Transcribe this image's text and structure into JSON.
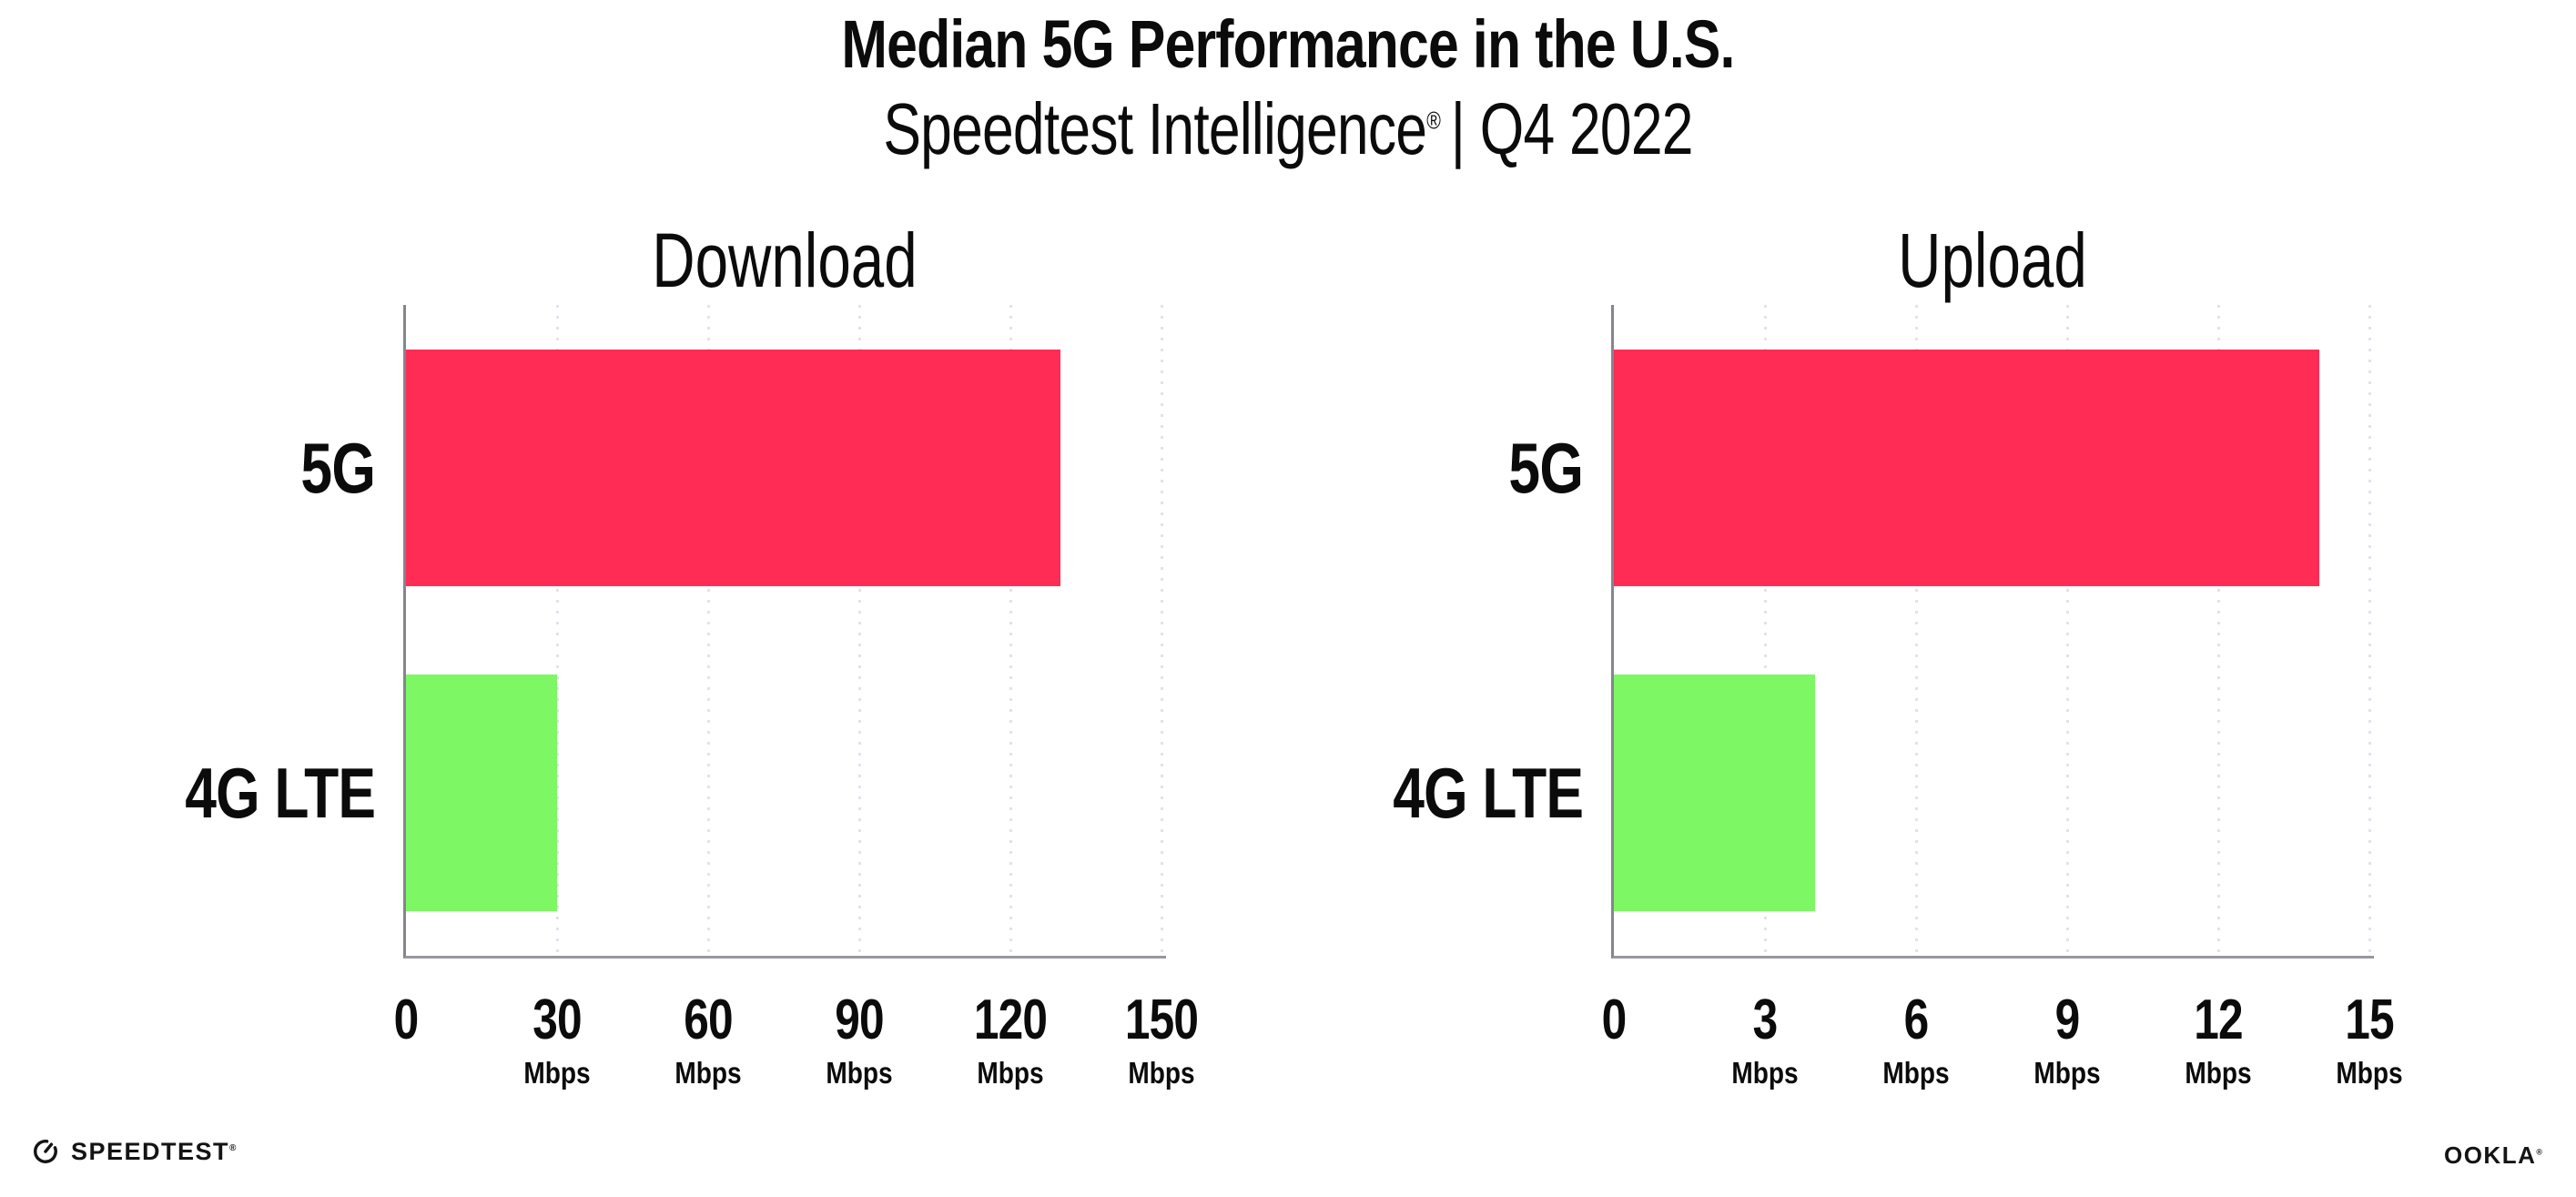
{
  "header": {
    "title": "Median 5G Performance in the U.S.",
    "subtitle_brand": "Speedtest Intelligence",
    "subtitle_reg": "®",
    "subtitle_rest": "| Q4 2022"
  },
  "footer": {
    "speedtest_label": "SPEEDTEST",
    "speedtest_reg": "®",
    "ookla_label": "OOKLA",
    "ookla_reg": "®"
  },
  "colors": {
    "bar_5g": "#ff2d55",
    "bar_4g_lte": "#7df763",
    "axis": "#85858d",
    "gridline": "#e2e2ec",
    "text": "#0b0b0b"
  },
  "chart_data": [
    {
      "type": "bar",
      "orientation": "horizontal",
      "title": "Download",
      "categories": [
        "5G",
        "4G LTE"
      ],
      "values": [
        130,
        30
      ],
      "unit": "Mbps",
      "xlim": [
        0,
        150
      ],
      "xticks": [
        0,
        30,
        60,
        90,
        120,
        150
      ],
      "grid": "dotted-vertical",
      "legend": "none",
      "bar_colors": [
        "#ff2d55",
        "#7df763"
      ]
    },
    {
      "type": "bar",
      "orientation": "horizontal",
      "title": "Upload",
      "categories": [
        "5G",
        "4G LTE"
      ],
      "values": [
        14,
        4
      ],
      "unit": "Mbps",
      "xlim": [
        0,
        15
      ],
      "xticks": [
        0,
        3,
        6,
        9,
        12,
        15
      ],
      "grid": "dotted-vertical",
      "legend": "none",
      "bar_colors": [
        "#ff2d55",
        "#7df763"
      ]
    }
  ]
}
